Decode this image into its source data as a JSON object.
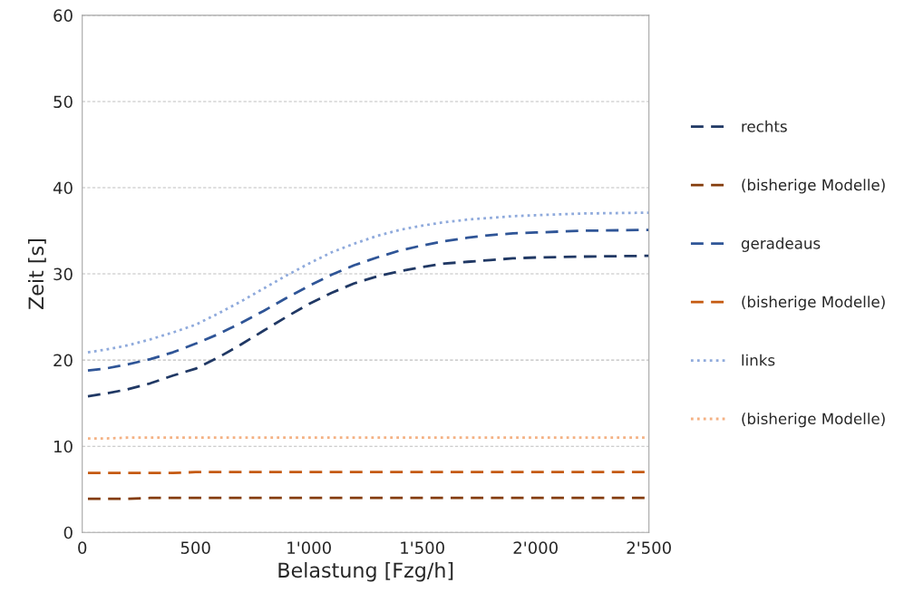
{
  "chart_data": {
    "type": "line",
    "xlabel": "Belastung [Fzg/h]",
    "ylabel": "Zeit [s]",
    "x": [
      25,
      100,
      200,
      300,
      400,
      500,
      600,
      700,
      800,
      900,
      1000,
      1100,
      1200,
      1300,
      1400,
      1500,
      1600,
      1700,
      1800,
      1900,
      2000,
      2200,
      2500
    ],
    "series": [
      {
        "name": "rechts",
        "color": "#203864",
        "line_style": "dashed",
        "values": [
          15.8,
          16.1,
          16.6,
          17.3,
          18.2,
          19.0,
          20.3,
          21.8,
          23.4,
          25.0,
          26.5,
          27.8,
          28.9,
          29.7,
          30.3,
          30.8,
          31.2,
          31.4,
          31.6,
          31.8,
          31.9,
          32.0,
          32.1
        ]
      },
      {
        "name": "(bisherige Modelle)",
        "color": "#843c0c",
        "line_style": "dashed",
        "values": [
          3.9,
          3.9,
          3.9,
          4.0,
          4.0,
          4.0,
          4.0,
          4.0,
          4.0,
          4.0,
          4.0,
          4.0,
          4.0,
          4.0,
          4.0,
          4.0,
          4.0,
          4.0,
          4.0,
          4.0,
          4.0,
          4.0,
          4.0
        ]
      },
      {
        "name": "geradeaus",
        "color": "#2f5597",
        "line_style": "dashed",
        "values": [
          18.8,
          19.0,
          19.5,
          20.1,
          20.9,
          21.9,
          23.0,
          24.3,
          25.7,
          27.2,
          28.6,
          29.9,
          31.0,
          31.9,
          32.7,
          33.3,
          33.8,
          34.2,
          34.5,
          34.7,
          34.8,
          35.0,
          35.1
        ]
      },
      {
        "name": "(bisherige Modelle)",
        "color": "#c55a11",
        "line_style": "dashed",
        "values": [
          6.9,
          6.9,
          6.9,
          6.9,
          6.9,
          7.0,
          7.0,
          7.0,
          7.0,
          7.0,
          7.0,
          7.0,
          7.0,
          7.0,
          7.0,
          7.0,
          7.0,
          7.0,
          7.0,
          7.0,
          7.0,
          7.0,
          7.0
        ]
      },
      {
        "name": "links",
        "color": "#8faadc",
        "line_style": "dotted",
        "values": [
          20.9,
          21.2,
          21.7,
          22.4,
          23.2,
          24.1,
          25.4,
          26.8,
          28.3,
          29.8,
          31.2,
          32.5,
          33.5,
          34.4,
          35.1,
          35.6,
          36.0,
          36.3,
          36.5,
          36.7,
          36.8,
          37.0,
          37.1
        ]
      },
      {
        "name": "(bisherige Modelle)",
        "color": "#f4b183",
        "line_style": "dotted",
        "values": [
          10.9,
          10.9,
          11.0,
          11.0,
          11.0,
          11.0,
          11.0,
          11.0,
          11.0,
          11.0,
          11.0,
          11.0,
          11.0,
          11.0,
          11.0,
          11.0,
          11.0,
          11.0,
          11.0,
          11.0,
          11.0,
          11.0,
          11.0
        ]
      }
    ],
    "xlim": [
      0,
      2500
    ],
    "xticks": [
      0,
      500,
      {
        "value": 1000,
        "label": "1'000"
      },
      {
        "value": 1500,
        "label": "1'500"
      },
      {
        "value": 2000,
        "label": "2'000"
      },
      {
        "value": 2500,
        "label": "2'500"
      }
    ],
    "ylim": [
      0,
      60
    ],
    "yticks": [
      0,
      10,
      20,
      30,
      40,
      50,
      60
    ],
    "grid": "y",
    "legend": "right"
  }
}
